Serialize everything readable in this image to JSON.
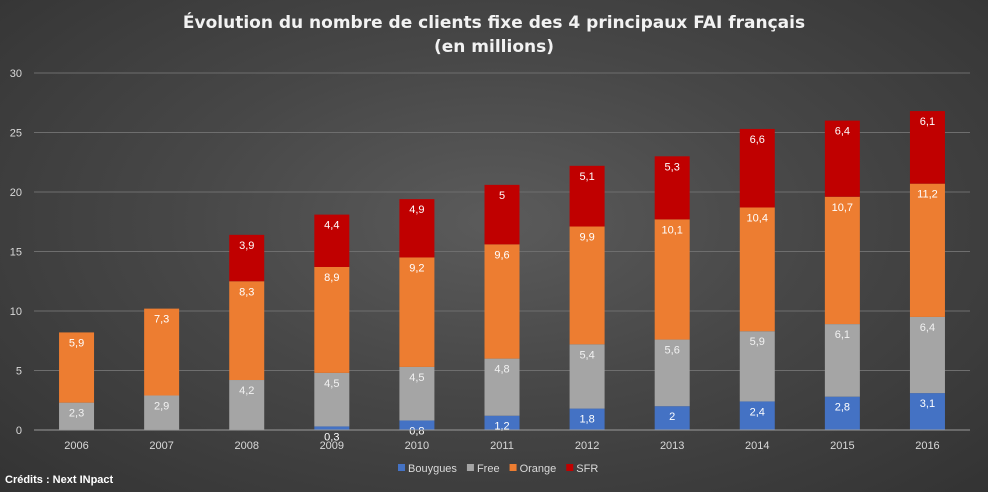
{
  "chart_data": {
    "type": "bar",
    "stacked": true,
    "title": "Évolution du nombre de clients fixe des 4 principaux FAI français",
    "subtitle": "(en millions)",
    "xlabel": "",
    "ylabel": "",
    "ylim": [
      0,
      30
    ],
    "yticks": [
      0,
      5,
      10,
      15,
      20,
      25,
      30
    ],
    "grid": true,
    "legend_position": "bottom",
    "categories": [
      "2006",
      "2007",
      "2008",
      "2009",
      "2010",
      "2011",
      "2012",
      "2013",
      "2014",
      "2015",
      "2016"
    ],
    "series": [
      {
        "name": "Bouygues",
        "color": "#4472c4",
        "values": [
          0,
          0,
          0,
          0.3,
          0.8,
          1.2,
          1.8,
          2,
          2.4,
          2.8,
          3.1
        ],
        "labels": [
          "",
          "",
          "",
          "0,3",
          "0,8",
          "1,2",
          "1,8",
          "2",
          "2,4",
          "2,8",
          "3,1"
        ]
      },
      {
        "name": "Free",
        "color": "#a5a5a5",
        "values": [
          2.3,
          2.9,
          4.2,
          4.5,
          4.5,
          4.8,
          5.4,
          5.6,
          5.9,
          6.1,
          6.4
        ],
        "labels": [
          "2,3",
          "2,9",
          "4,2",
          "4,5",
          "4,5",
          "4,8",
          "5,4",
          "5,6",
          "5,9",
          "6,1",
          "6,4"
        ]
      },
      {
        "name": "Orange",
        "color": "#ed7d31",
        "values": [
          5.9,
          7.3,
          8.3,
          8.9,
          9.2,
          9.6,
          9.9,
          10.1,
          10.4,
          10.7,
          11.2
        ],
        "labels": [
          "5,9",
          "7,3",
          "8,3",
          "8,9",
          "9,2",
          "9,6",
          "9,9",
          "10,1",
          "10,4",
          "10,7",
          "11,2"
        ]
      },
      {
        "name": "SFR",
        "color": "#c00000",
        "values": [
          0,
          0,
          3.9,
          4.4,
          4.9,
          5,
          5.1,
          5.3,
          6.6,
          6.4,
          6.1
        ],
        "labels": [
          "",
          "",
          "3,9",
          "4,4",
          "4,9",
          "5",
          "5,1",
          "5,3",
          "6,6",
          "6,4",
          "6,1"
        ]
      }
    ]
  },
  "credits": "Crédits : Next INpact"
}
